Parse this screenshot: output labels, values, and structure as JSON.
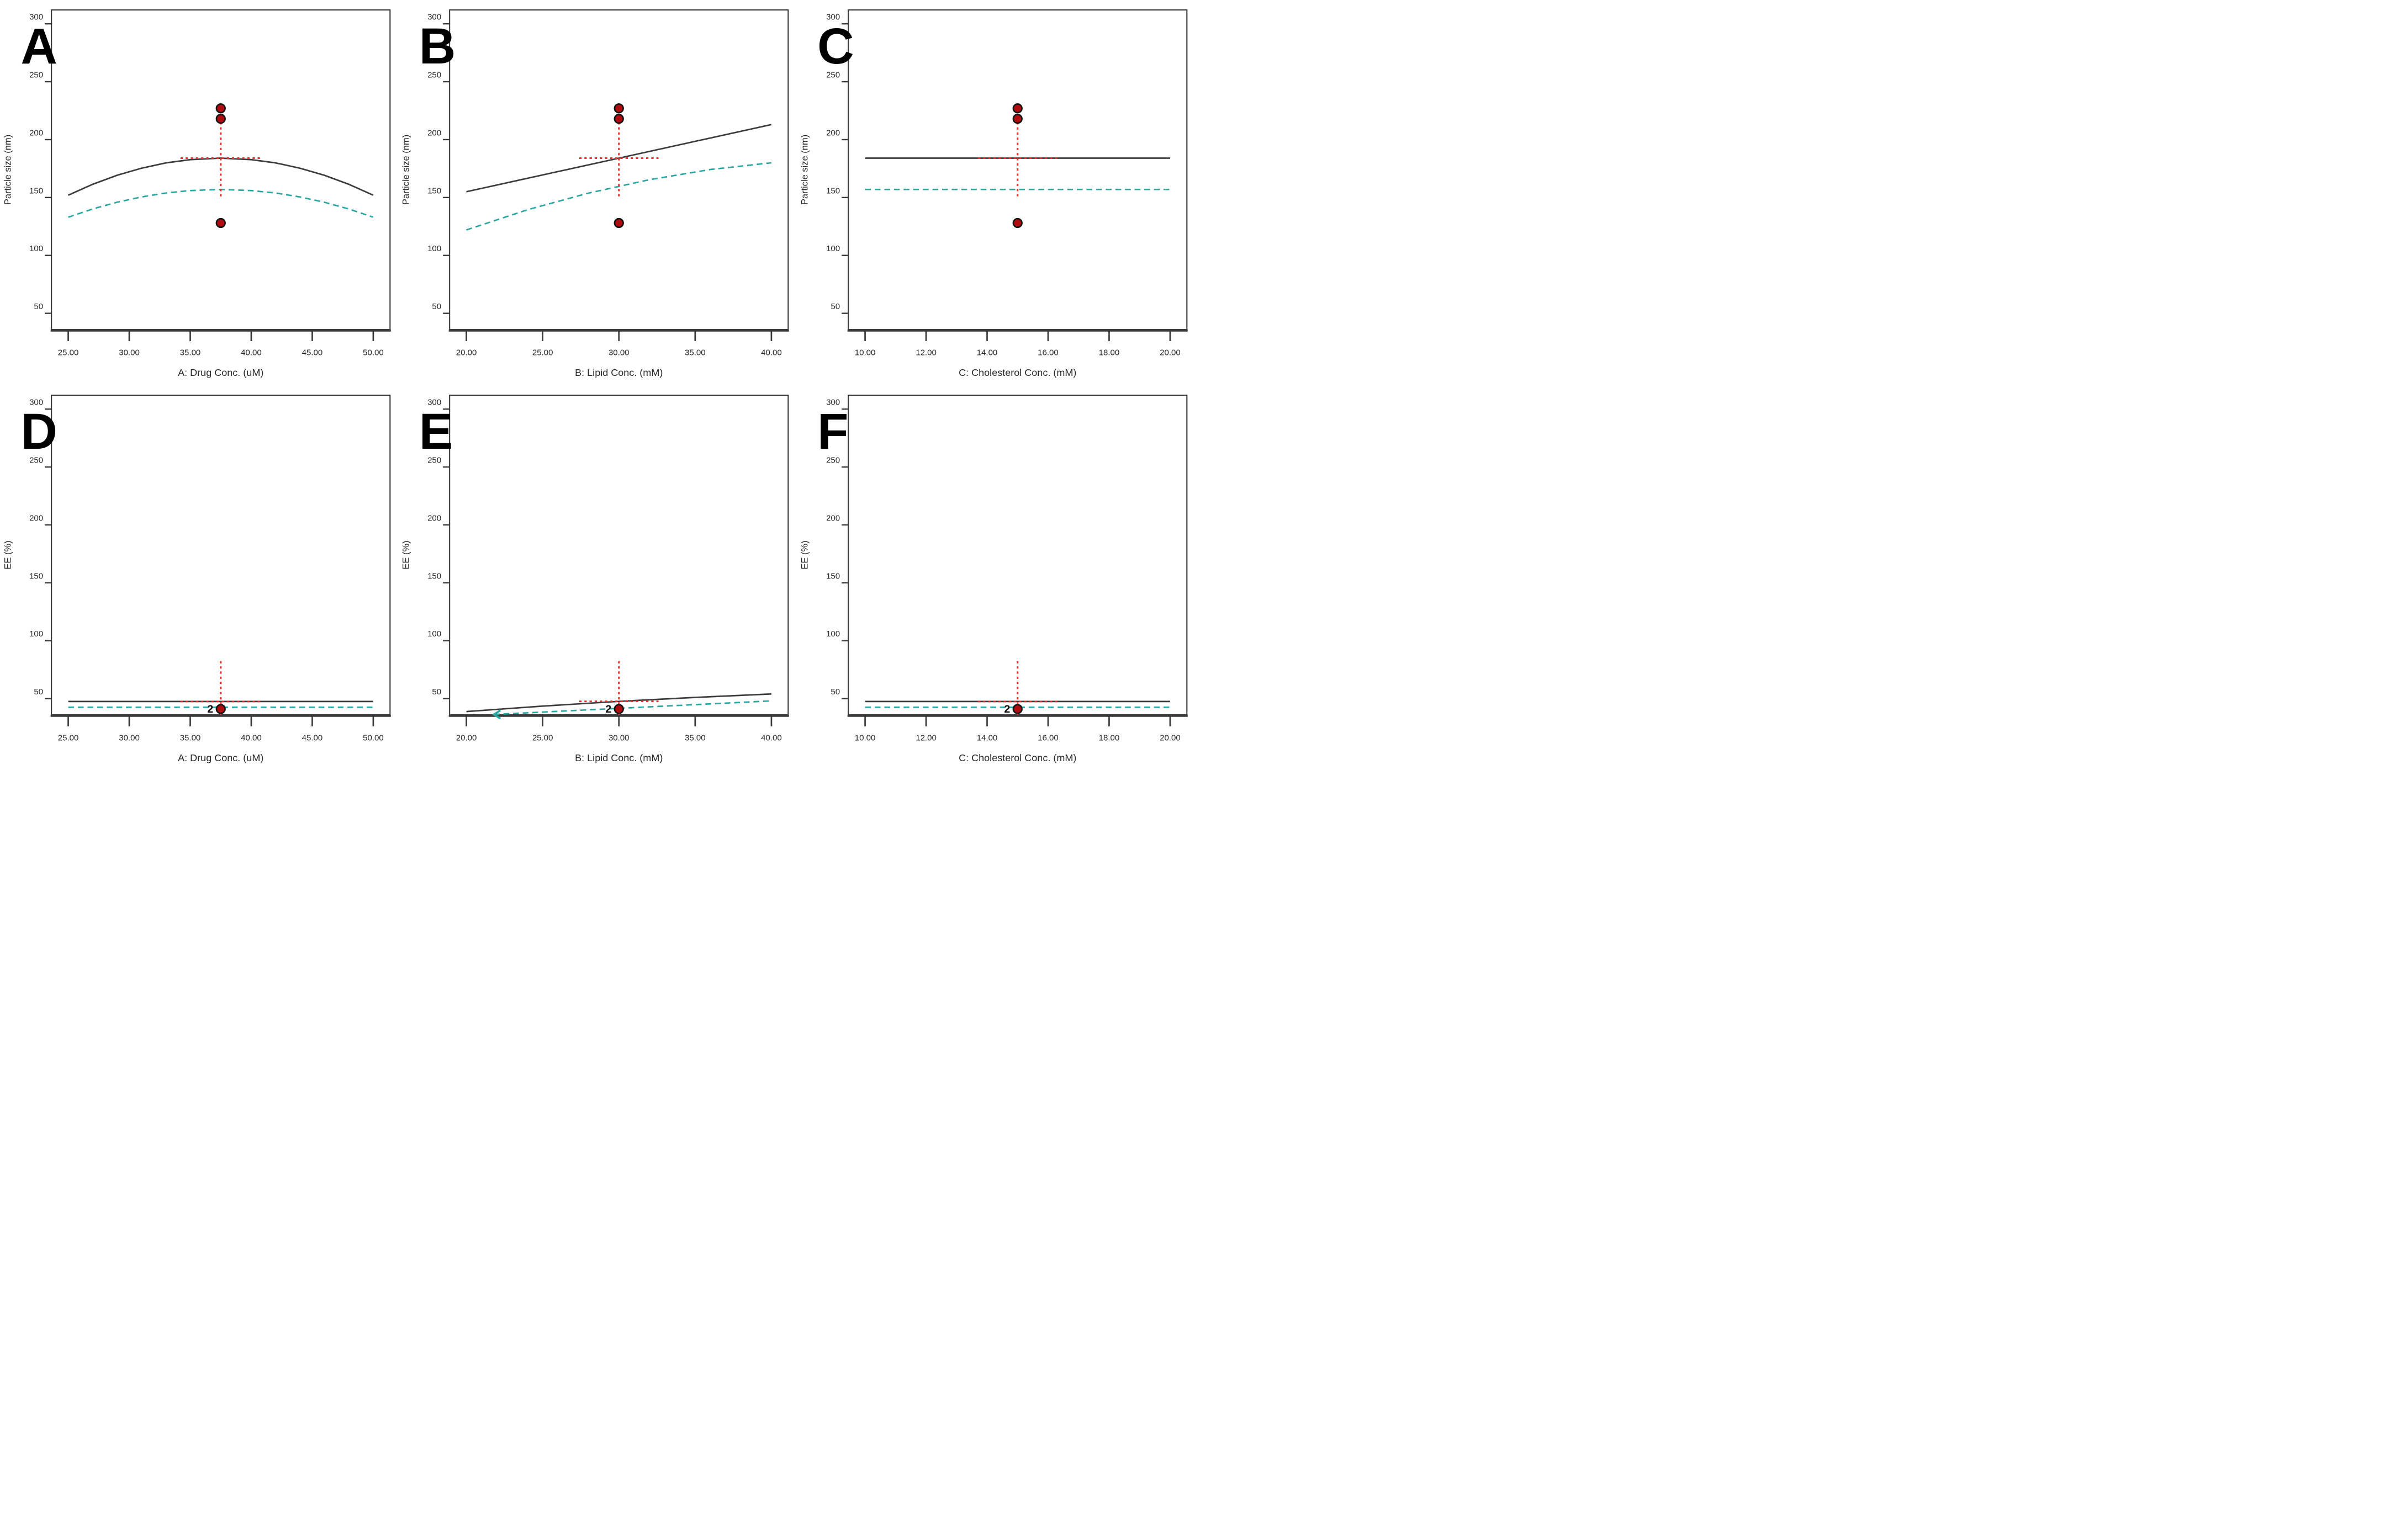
{
  "page": {
    "background": "#ffffff",
    "description": "Two-row, three-column grid of factor-effect plots (panels A-F)"
  },
  "colors": {
    "solid_line": "#3d3d3d",
    "dashed_line": "#2aa7a1",
    "crosshair": "#ee2e2a",
    "point_fill": "#b00c0f",
    "point_stroke": "#141414",
    "axis": "#3a3a3a",
    "tick_text": "#262626",
    "panel_letter": "#000000",
    "point_label_color": "#000000"
  },
  "chart_data": [
    {
      "type": "line",
      "letter": "A",
      "xlabel": "A: Drug Conc. (uM)",
      "ylabel": "Particle size (nm)",
      "xlim": [
        25,
        50
      ],
      "x_ticks": [
        25,
        30,
        35,
        40,
        45,
        50
      ],
      "x_tick_labels": [
        "25.00",
        "30.00",
        "35.00",
        "40.00",
        "45.00",
        "50.00"
      ],
      "ylim": [
        36,
        312
      ],
      "y_ticks": [
        50,
        100,
        150,
        200,
        250,
        300
      ],
      "y_tick_labels": [
        "50",
        "100",
        "150",
        "200",
        "250",
        "300"
      ],
      "series": [
        {
          "name": "particle-size-prediction",
          "style": "solid",
          "points": [
            [
              25,
              152
            ],
            [
              27,
              161.4
            ],
            [
              29,
              169.2
            ],
            [
              31,
              175.3
            ],
            [
              33,
              179.9
            ],
            [
              35,
              182.7
            ],
            [
              37.5,
              184
            ],
            [
              40,
              182.7
            ],
            [
              42,
              179.9
            ],
            [
              44,
              175.3
            ],
            [
              46,
              169.2
            ],
            [
              48,
              161.4
            ],
            [
              50,
              152
            ]
          ]
        },
        {
          "name": "particle-size-band",
          "style": "dashed",
          "points": [
            [
              25,
              133
            ],
            [
              27,
              140.1
            ],
            [
              29,
              145.9
            ],
            [
              31,
              150.5
            ],
            [
              33,
              153.9
            ],
            [
              35,
              156
            ],
            [
              37.5,
              157
            ],
            [
              40,
              156
            ],
            [
              42,
              153.9
            ],
            [
              44,
              150.5
            ],
            [
              46,
              145.9
            ],
            [
              48,
              140.1
            ],
            [
              50,
              133
            ]
          ]
        }
      ],
      "crosshair": {
        "x": 37.5,
        "y": 184,
        "v_from": 151,
        "v_to": 215,
        "h_from": 34.2,
        "h_to": 40.8
      },
      "design_points": [
        {
          "x": 37.5,
          "y": 227,
          "label": ""
        },
        {
          "x": 37.5,
          "y": 218,
          "label": ""
        },
        {
          "x": 37.5,
          "y": 128,
          "label": ""
        }
      ]
    },
    {
      "type": "line",
      "letter": "B",
      "xlabel": "B: Lipid Conc. (mM)",
      "ylabel": "Particle size (nm)",
      "xlim": [
        20,
        40
      ],
      "x_ticks": [
        20,
        25,
        30,
        35,
        40
      ],
      "x_tick_labels": [
        "20.00",
        "25.00",
        "30.00",
        "35.00",
        "40.00"
      ],
      "ylim": [
        36,
        312
      ],
      "y_ticks": [
        50,
        100,
        150,
        200,
        250,
        300
      ],
      "y_tick_labels": [
        "50",
        "100",
        "150",
        "200",
        "250",
        "300"
      ],
      "series": [
        {
          "name": "particle-size-prediction",
          "style": "solid",
          "points": [
            [
              20,
              155
            ],
            [
              25,
              169.5
            ],
            [
              30,
              184
            ],
            [
              35,
              198.5
            ],
            [
              40,
              213
            ]
          ]
        },
        {
          "name": "particle-size-band",
          "style": "dashed",
          "points": [
            [
              20,
              122
            ],
            [
              24,
              139.4
            ],
            [
              28,
              153.8
            ],
            [
              32,
              165.4
            ],
            [
              36,
              174.2
            ],
            [
              40,
              180
            ]
          ]
        }
      ],
      "crosshair": {
        "x": 30,
        "y": 184,
        "v_from": 151,
        "v_to": 215,
        "h_from": 27.4,
        "h_to": 32.6
      },
      "design_points": [
        {
          "x": 30,
          "y": 227,
          "label": ""
        },
        {
          "x": 30,
          "y": 218,
          "label": ""
        },
        {
          "x": 30,
          "y": 128,
          "label": ""
        }
      ]
    },
    {
      "type": "line",
      "letter": "C",
      "xlabel": "C: Cholesterol Conc. (mM)",
      "ylabel": "Particle size (nm)",
      "xlim": [
        10,
        20
      ],
      "x_ticks": [
        10,
        12,
        14,
        16,
        18,
        20
      ],
      "x_tick_labels": [
        "10.00",
        "12.00",
        "14.00",
        "16.00",
        "18.00",
        "20.00"
      ],
      "ylim": [
        36,
        312
      ],
      "y_ticks": [
        50,
        100,
        150,
        200,
        250,
        300
      ],
      "y_tick_labels": [
        "50",
        "100",
        "150",
        "200",
        "250",
        "300"
      ],
      "series": [
        {
          "name": "particle-size-prediction",
          "style": "solid",
          "points": [
            [
              10,
              184
            ],
            [
              20,
              184
            ]
          ]
        },
        {
          "name": "particle-size-band",
          "style": "dashed",
          "points": [
            [
              10,
              157
            ],
            [
              20,
              157
            ]
          ]
        }
      ],
      "crosshair": {
        "x": 15,
        "y": 184,
        "v_from": 151,
        "v_to": 215,
        "h_from": 13.7,
        "h_to": 16.3
      },
      "design_points": [
        {
          "x": 15,
          "y": 227,
          "label": ""
        },
        {
          "x": 15,
          "y": 218,
          "label": ""
        },
        {
          "x": 15,
          "y": 128,
          "label": ""
        }
      ]
    },
    {
      "type": "line",
      "letter": "D",
      "xlabel": "A: Drug Conc. (uM)",
      "ylabel": "EE (%)",
      "xlim": [
        25,
        50
      ],
      "x_ticks": [
        25,
        30,
        35,
        40,
        45,
        50
      ],
      "x_tick_labels": [
        "25.00",
        "30.00",
        "35.00",
        "40.00",
        "45.00",
        "50.00"
      ],
      "ylim": [
        36,
        312
      ],
      "y_ticks": [
        50,
        100,
        150,
        200,
        250,
        300
      ],
      "y_tick_labels": [
        "50",
        "100",
        "150",
        "200",
        "250",
        "300"
      ],
      "series": [
        {
          "name": "ee-prediction",
          "style": "solid",
          "points": [
            [
              25,
              47.5
            ],
            [
              50,
              47.5
            ]
          ]
        },
        {
          "name": "ee-band",
          "style": "dashed",
          "points": [
            [
              25,
              42.5
            ],
            [
              50,
              42.5
            ]
          ]
        }
      ],
      "crosshair": {
        "x": 37.5,
        "y": 47.5,
        "v_from": 36,
        "v_to": 83,
        "h_from": 34.2,
        "h_to": 40.8
      },
      "design_points": [
        {
          "x": 37.5,
          "y": 41,
          "label": "2"
        }
      ]
    },
    {
      "type": "line",
      "letter": "E",
      "xlabel": "B: Lipid Conc. (mM)",
      "ylabel": "EE (%)",
      "xlim": [
        20,
        40
      ],
      "x_ticks": [
        20,
        25,
        30,
        35,
        40
      ],
      "x_tick_labels": [
        "20.00",
        "25.00",
        "30.00",
        "35.00",
        "40.00"
      ],
      "ylim": [
        36,
        312
      ],
      "y_ticks": [
        50,
        100,
        150,
        200,
        250,
        300
      ],
      "y_tick_labels": [
        "50",
        "100",
        "150",
        "200",
        "250",
        "300"
      ],
      "series": [
        {
          "name": "ee-prediction",
          "style": "solid",
          "points": [
            [
              20,
              38.8
            ],
            [
              25,
              43.5
            ],
            [
              30,
              47.6
            ],
            [
              35,
              51
            ],
            [
              40,
              54
            ]
          ]
        },
        {
          "name": "ee-band",
          "style": "dashed",
          "arrow_start": true,
          "points": [
            [
              21.8,
              36.3
            ],
            [
              26,
              39
            ],
            [
              30,
              41.6
            ],
            [
              35,
              44.8
            ],
            [
              40,
              48
            ]
          ]
        }
      ],
      "crosshair": {
        "x": 30,
        "y": 47.6,
        "v_from": 36,
        "v_to": 83,
        "h_from": 27.4,
        "h_to": 32.6
      },
      "design_points": [
        {
          "x": 30,
          "y": 41,
          "label": "2"
        }
      ]
    },
    {
      "type": "line",
      "letter": "F",
      "xlabel": "C: Cholesterol Conc. (mM)",
      "ylabel": "EE (%)",
      "xlim": [
        10,
        20
      ],
      "x_ticks": [
        10,
        12,
        14,
        16,
        18,
        20
      ],
      "x_tick_labels": [
        "10.00",
        "12.00",
        "14.00",
        "16.00",
        "18.00",
        "20.00"
      ],
      "ylim": [
        36,
        312
      ],
      "y_ticks": [
        50,
        100,
        150,
        200,
        250,
        300
      ],
      "y_tick_labels": [
        "50",
        "100",
        "150",
        "200",
        "250",
        "300"
      ],
      "series": [
        {
          "name": "ee-prediction",
          "style": "solid",
          "points": [
            [
              10,
              47.5
            ],
            [
              20,
              47.5
            ]
          ]
        },
        {
          "name": "ee-band",
          "style": "dashed",
          "points": [
            [
              10,
              42.5
            ],
            [
              20,
              42.5
            ]
          ]
        }
      ],
      "crosshair": {
        "x": 15,
        "y": 47.5,
        "v_from": 36,
        "v_to": 83,
        "h_from": 13.7,
        "h_to": 16.3
      },
      "design_points": [
        {
          "x": 15,
          "y": 41,
          "label": "2"
        }
      ]
    }
  ]
}
